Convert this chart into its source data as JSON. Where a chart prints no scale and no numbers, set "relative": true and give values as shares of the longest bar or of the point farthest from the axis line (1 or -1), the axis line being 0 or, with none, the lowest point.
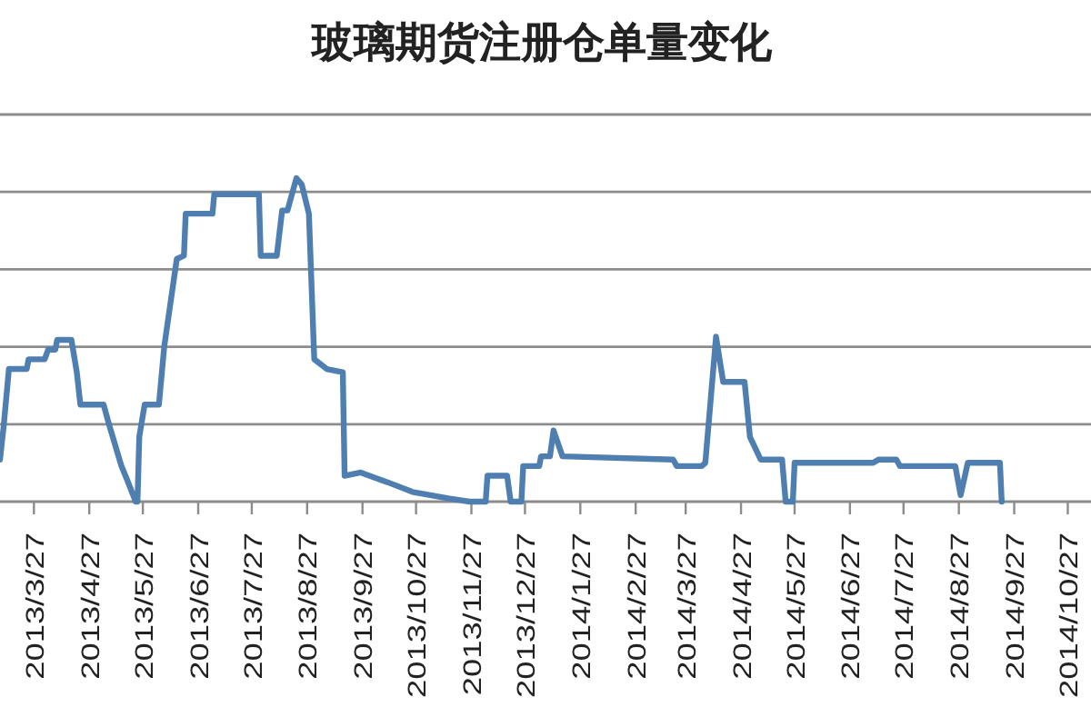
{
  "chart_data": {
    "type": "line",
    "title": "玻璃期货注册仓单量变化",
    "relative": true,
    "grid": "y",
    "xlim": [
      "2013-03-08",
      "2014-11-09"
    ],
    "xticks": [
      {
        "value": "2013-03-27",
        "label": "2013/3/27"
      },
      {
        "value": "2013-04-27",
        "label": "2013/4/27"
      },
      {
        "value": "2013-05-27",
        "label": "2013/5/27"
      },
      {
        "value": "2013-06-27",
        "label": "2013/6/27"
      },
      {
        "value": "2013-07-27",
        "label": "2013/7/27"
      },
      {
        "value": "2013-08-27",
        "label": "2013/8/27"
      },
      {
        "value": "2013-09-27",
        "label": "2013/9/27"
      },
      {
        "value": "2013-10-27",
        "label": "2013/10/27"
      },
      {
        "value": "2013-11-27",
        "label": "2013/11/27"
      },
      {
        "value": "2013-12-27",
        "label": "2013/12/27"
      },
      {
        "value": "2014-01-27",
        "label": "2014/1/27"
      },
      {
        "value": "2014-02-27",
        "label": "2014/2/27"
      },
      {
        "value": "2014-03-27",
        "label": "2014/3/27"
      },
      {
        "value": "2014-04-27",
        "label": "2014/4/27"
      },
      {
        "value": "2014-05-27",
        "label": "2014/5/27"
      },
      {
        "value": "2014-06-27",
        "label": "2014/6/27"
      },
      {
        "value": "2014-07-27",
        "label": "2014/7/27"
      },
      {
        "value": "2014-08-27",
        "label": "2014/8/27"
      },
      {
        "value": "2014-09-27",
        "label": "2014/9/27"
      },
      {
        "value": "2014-10-27",
        "label": "2014/10/27"
      }
    ],
    "series": [
      {
        "color": "#4f7fb0",
        "x": [
          "2013-03-08",
          "2013-03-10",
          "2013-03-13",
          "2013-03-23",
          "2013-03-24",
          "2013-04-02",
          "2013-04-04",
          "2013-04-08",
          "2013-04-09",
          "2013-04-17",
          "2013-04-20",
          "2013-04-22",
          "2013-05-05",
          "2013-05-08",
          "2013-05-15",
          "2013-05-18",
          "2013-05-23",
          "2013-05-24",
          "2013-05-25",
          "2013-05-28",
          "2013-06-05",
          "2013-06-08",
          "2013-06-15",
          "2013-06-19",
          "2013-06-20",
          "2013-07-05",
          "2013-07-06",
          "2013-07-31",
          "2013-08-01",
          "2013-08-10",
          "2013-08-13",
          "2013-08-16",
          "2013-08-21",
          "2013-08-24",
          "2013-08-28",
          "2013-08-31",
          "2013-09-07",
          "2013-09-16",
          "2013-09-17",
          "2013-09-26",
          "2013-10-11",
          "2013-10-25",
          "2013-11-14",
          "2013-11-26",
          "2013-12-05",
          "2013-12-06",
          "2013-12-17",
          "2013-12-19",
          "2013-12-25",
          "2013-12-26",
          "2014-01-04",
          "2014-01-05",
          "2014-01-10",
          "2014-01-12",
          "2014-01-17",
          "2014-03-20",
          "2014-03-22",
          "2014-04-05",
          "2014-04-07",
          "2014-04-13",
          "2014-04-17",
          "2014-04-29",
          "2014-05-02",
          "2014-05-08",
          "2014-05-20",
          "2014-05-22",
          "2014-05-26",
          "2014-05-27",
          "2014-07-10",
          "2014-07-13",
          "2014-07-23",
          "2014-07-25",
          "2014-08-25",
          "2014-08-28",
          "2014-09-01",
          "2014-09-19",
          "2014-09-20"
        ],
        "values": [
          0.13,
          0.23,
          0.41,
          0.41,
          0.44,
          0.44,
          0.47,
          0.47,
          0.5,
          0.5,
          0.4,
          0.3,
          0.3,
          0.24,
          0.11,
          0.07,
          0,
          0,
          0.2,
          0.3,
          0.3,
          0.48,
          0.75,
          0.76,
          0.89,
          0.89,
          0.95,
          0.95,
          0.76,
          0.76,
          0.9,
          0.9,
          1.0,
          0.98,
          0.89,
          0.44,
          0.41,
          0.4,
          0.08,
          0.09,
          0.06,
          0.03,
          0.01,
          0,
          0,
          0.08,
          0.08,
          0,
          0,
          0.11,
          0.11,
          0.14,
          0.14,
          0.22,
          0.14,
          0.13,
          0.11,
          0.11,
          0.12,
          0.51,
          0.37,
          0.37,
          0.2,
          0.13,
          0.13,
          0,
          0,
          0.12,
          0.12,
          0.13,
          0.13,
          0.11,
          0.11,
          0.02,
          0.12,
          0.12,
          0
        ]
      }
    ]
  }
}
